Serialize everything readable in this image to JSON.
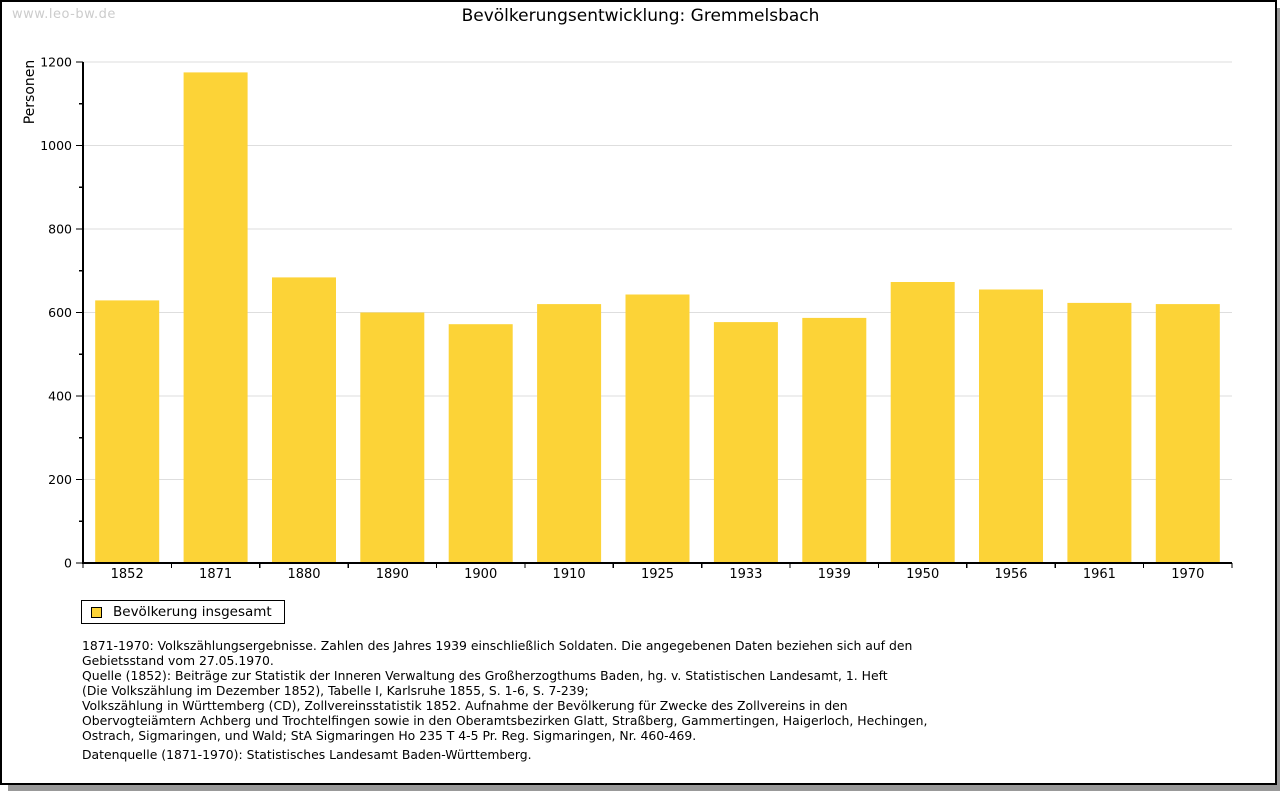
{
  "watermark": "www.leo-bw.de",
  "header": {
    "title": "Bevölkerungsentwicklung: Gremmelsbach"
  },
  "chart_data": {
    "type": "bar",
    "title": "Bevölkerungsentwicklung: Gremmelsbach",
    "xlabel": "",
    "ylabel": "Personen",
    "categories": [
      "1852",
      "1871",
      "1880",
      "1890",
      "1900",
      "1910",
      "1925",
      "1933",
      "1939",
      "1950",
      "1956",
      "1961",
      "1970"
    ],
    "series": [
      {
        "name": "Bevölkerung insgesamt",
        "values": [
          629,
          1175,
          684,
          600,
          572,
          620,
          643,
          577,
          587,
          673,
          655,
          623,
          620
        ]
      }
    ],
    "ylim": [
      0,
      1200
    ],
    "ytick_major_step": 200,
    "ytick_minor_step": 100,
    "ytick_labels": [
      "0",
      "200",
      "400",
      "600",
      "800",
      "1000",
      "1200"
    ],
    "grid": true,
    "legend_position": "bottom-left",
    "bar_color": "#FCD337"
  },
  "legend": {
    "label": "Bevölkerung insgesamt"
  },
  "colors": {
    "bar": "#FCD337",
    "gridline": "#DEDEDE",
    "axis": "#000000",
    "watermark": "#CCCCCC",
    "shadow": "#999999",
    "background": "#FFFFFF"
  },
  "footnotes": {
    "lines": [
      "1871-1970: Volkszählungsergebnisse. Zahlen des Jahres 1939 einschließlich Soldaten. Die angegebenen Daten beziehen sich auf den",
      "Gebietsstand vom 27.05.1970.",
      "Quelle (1852): Beiträge zur Statistik der Inneren Verwaltung des Großherzogthums Baden, hg. v. Statistischen Landesamt, 1. Heft",
      "(Die Volkszählung im Dezember 1852), Tabelle I, Karlsruhe 1855, S. 1-6, S. 7-239;",
      "Volkszählung in Württemberg (CD), Zollvereinsstatistik 1852. Aufnahme der Bevölkerung für Zwecke des Zollvereins in den",
      "Obervogteiämtern Achberg und Trochtelfingen sowie in den Oberamtsbezirken Glatt, Straßberg, Gammertingen, Haigerloch, Hechingen,",
      "Ostrach, Sigmaringen, und Wald; StA Sigmaringen Ho 235 T 4-5 Pr. Reg. Sigmaringen, Nr. 460-469."
    ],
    "datasource": "Datenquelle (1871-1970): Statistisches Landesamt Baden-Württemberg."
  }
}
